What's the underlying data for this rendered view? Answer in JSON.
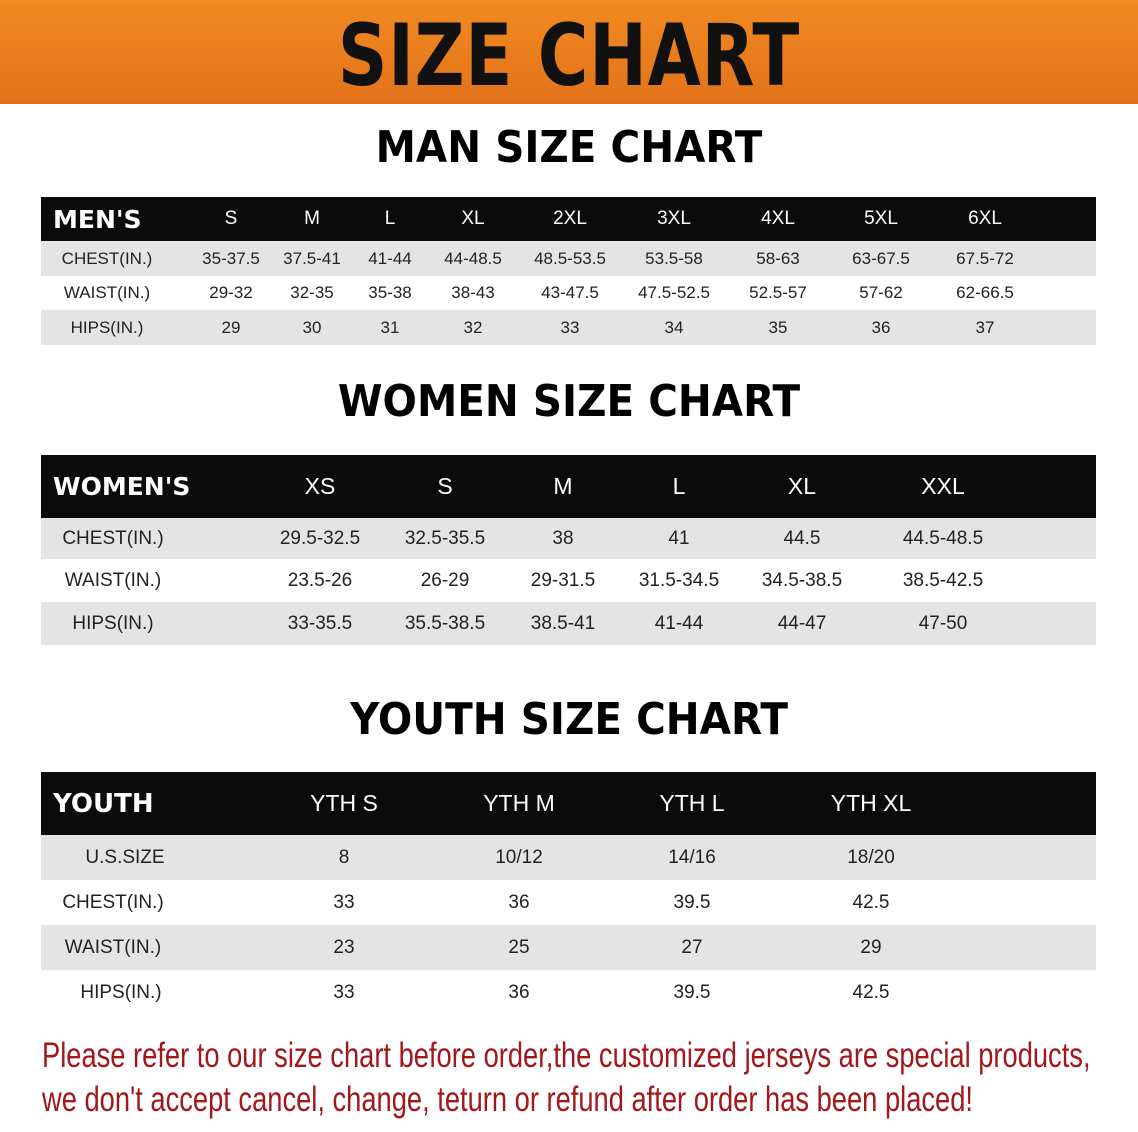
{
  "banner": {
    "title": "SIZE CHART",
    "color": "#e97d1e"
  },
  "men": {
    "title": "MAN SIZE CHART",
    "header": [
      "MEN'S",
      "S",
      "M",
      "L",
      "XL",
      "2XL",
      "3XL",
      "4XL",
      "5XL",
      "6XL"
    ],
    "rows": [
      [
        "CHEST(IN.)",
        "35-37.5",
        "37.5-41",
        "41-44",
        "44-48.5",
        "48.5-53.5",
        "53.5-58",
        "58-63",
        "63-67.5",
        "67.5-72"
      ],
      [
        "WAIST(IN.)",
        "29-32",
        "32-35",
        "35-38",
        "38-43",
        "43-47.5",
        "47.5-52.5",
        "52.5-57",
        "57-62",
        "62-66.5"
      ],
      [
        "HIPS(IN.)",
        "29",
        "30",
        "31",
        "32",
        "33",
        "34",
        "35",
        "36",
        "37"
      ]
    ]
  },
  "women": {
    "title": "WOMEN SIZE CHART",
    "header": [
      "WOMEN'S",
      "XS",
      "S",
      "M",
      "L",
      "XL",
      "XXL"
    ],
    "rows": [
      [
        "CHEST(IN.)",
        "29.5-32.5",
        "32.5-35.5",
        "38",
        "41",
        "44.5",
        "44.5-48.5"
      ],
      [
        "WAIST(IN.)",
        "23.5-26",
        "26-29",
        "29-31.5",
        "31.5-34.5",
        "34.5-38.5",
        "38.5-42.5"
      ],
      [
        "HIPS(IN.)",
        "33-35.5",
        "35.5-38.5",
        "38.5-41",
        "41-44",
        "44-47",
        "47-50"
      ]
    ]
  },
  "youth": {
    "title": "YOUTH SIZE CHART",
    "header": [
      "YOUTH",
      "YTH S",
      "YTH M",
      "YTH L",
      "YTH XL"
    ],
    "rows": [
      [
        "U.S.SIZE",
        "8",
        "10/12",
        "14/16",
        "18/20"
      ],
      [
        "CHEST(IN.)",
        "33",
        "36",
        "39.5",
        "42.5"
      ],
      [
        "WAIST(IN.)",
        "23",
        "25",
        "27",
        "29"
      ],
      [
        "HIPS(IN.)",
        "33",
        "36",
        "39.5",
        "42.5"
      ]
    ]
  },
  "notice": {
    "line1": "Please refer to our size chart before order,the customized jerseys are special products,",
    "line2": "we don't accept cancel, change, teturn or refund after order has been placed!",
    "color": "#a3161a"
  }
}
